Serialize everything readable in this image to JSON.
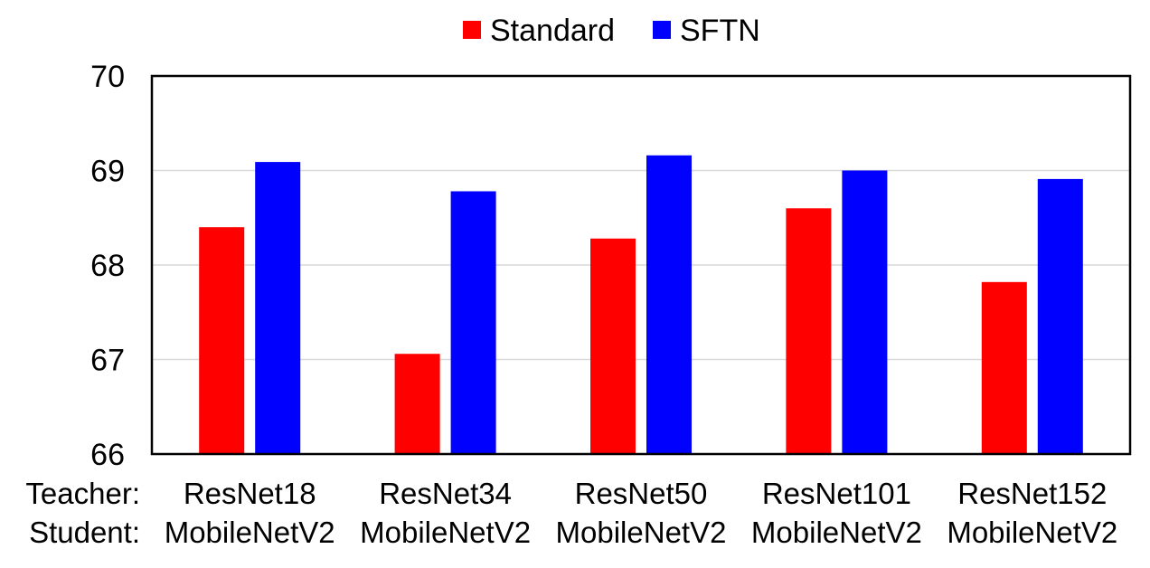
{
  "chart_data": {
    "type": "bar",
    "categories": [
      {
        "teacher": "ResNet18",
        "student": "MobileNetV2"
      },
      {
        "teacher": "ResNet34",
        "student": "MobileNetV2"
      },
      {
        "teacher": "ResNet50",
        "student": "MobileNetV2"
      },
      {
        "teacher": "ResNet101",
        "student": "MobileNetV2"
      },
      {
        "teacher": "ResNet152",
        "student": "MobileNetV2"
      }
    ],
    "row_labels": {
      "teacher": "Teacher:",
      "student": "Student:"
    },
    "series": [
      {
        "name": "Standard",
        "color": "#ff0000",
        "values": [
          68.4,
          67.06,
          68.28,
          68.6,
          67.82
        ]
      },
      {
        "name": "SFTN",
        "color": "#0000ff",
        "values": [
          69.09,
          68.78,
          69.16,
          69.0,
          68.91
        ]
      }
    ],
    "ylim": [
      66,
      70
    ],
    "yticks": [
      "66",
      "67",
      "68",
      "69",
      "70"
    ],
    "grid": true,
    "legend_position": "top-center",
    "title": "",
    "xlabel": "",
    "ylabel": ""
  }
}
